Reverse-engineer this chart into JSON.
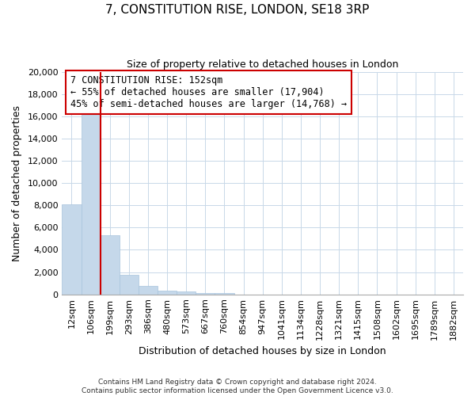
{
  "title": "7, CONSTITUTION RISE, LONDON, SE18 3RP",
  "subtitle": "Size of property relative to detached houses in London",
  "xlabel": "Distribution of detached houses by size in London",
  "ylabel": "Number of detached properties",
  "bar_labels": [
    "12sqm",
    "106sqm",
    "199sqm",
    "293sqm",
    "386sqm",
    "480sqm",
    "573sqm",
    "667sqm",
    "760sqm",
    "854sqm",
    "947sqm",
    "1041sqm",
    "1134sqm",
    "1228sqm",
    "1321sqm",
    "1415sqm",
    "1508sqm",
    "1602sqm",
    "1695sqm",
    "1789sqm",
    "1882sqm"
  ],
  "bar_values": [
    8100,
    16500,
    5300,
    1750,
    750,
    300,
    250,
    100,
    150,
    0,
    0,
    0,
    0,
    0,
    0,
    0,
    0,
    0,
    0,
    0,
    0
  ],
  "bar_color": "#c5d8ea",
  "bar_edge_color": "#a8c4dc",
  "annotation_text_line1": "7 CONSTITUTION RISE: 152sqm",
  "annotation_text_line2": "← 55% of detached houses are smaller (17,904)",
  "annotation_text_line3": "45% of semi-detached houses are larger (14,768) →",
  "ylim": [
    0,
    20000
  ],
  "yticks": [
    0,
    2000,
    4000,
    6000,
    8000,
    10000,
    12000,
    14000,
    16000,
    18000,
    20000
  ],
  "footer1": "Contains HM Land Registry data © Crown copyright and database right 2024.",
  "footer2": "Contains public sector information licensed under the Open Government Licence v3.0.",
  "red_line_color": "#cc0000",
  "annotation_box_edge_color": "#cc0000",
  "grid_color": "#c8d8e8",
  "red_line_x": 1.5
}
